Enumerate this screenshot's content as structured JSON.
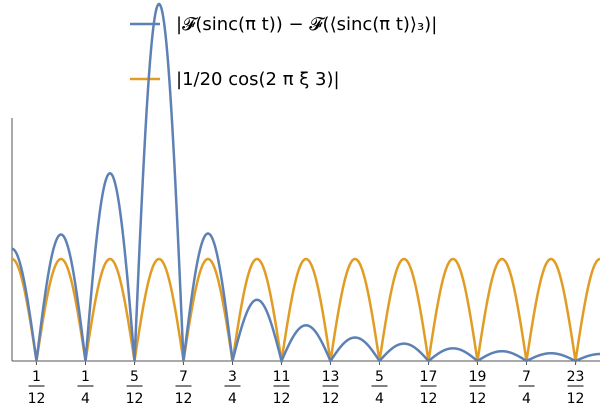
{
  "chart_data": {
    "type": "line",
    "title": "",
    "xlabel": "",
    "ylabel": "",
    "xlim": [
      0.0,
      2.0
    ],
    "ylim": [
      0,
      0.125
    ],
    "grid": false,
    "legend_placement": "top-center",
    "legend": [
      {
        "name": "|𝓕(sinc(π t)) − 𝓕(⟨sinc(π t)⟩₃)|",
        "color": "#5E81B5"
      },
      {
        "name": "|1/20 cos(2 π ξ 3)|",
        "color": "#E19C24"
      }
    ],
    "x_ticks": [
      {
        "value": 0.0833,
        "num": "1",
        "den": "12"
      },
      {
        "value": 0.25,
        "num": "1",
        "den": "4"
      },
      {
        "value": 0.4167,
        "num": "5",
        "den": "12"
      },
      {
        "value": 0.5833,
        "num": "7",
        "den": "12"
      },
      {
        "value": 0.75,
        "num": "3",
        "den": "4"
      },
      {
        "value": 0.9167,
        "num": "11",
        "den": "12"
      },
      {
        "value": 1.0833,
        "num": "13",
        "den": "12"
      },
      {
        "value": 1.25,
        "num": "5",
        "den": "4"
      },
      {
        "value": 1.4167,
        "num": "17",
        "den": "12"
      },
      {
        "value": 1.5833,
        "num": "19",
        "den": "12"
      },
      {
        "value": 1.75,
        "num": "7",
        "den": "4"
      },
      {
        "value": 1.9167,
        "num": "23",
        "den": "12"
      }
    ],
    "series": [
      {
        "name": "|𝓕(sinc(π t)) − 𝓕(⟨sinc(π t)⟩₃)|",
        "color": "#5E81B5",
        "zeros": [
          0.0833,
          0.25,
          0.4167,
          0.5833,
          0.75,
          0.9167,
          1.0833,
          1.25,
          1.4167,
          1.5833,
          1.75,
          1.9167
        ],
        "y_at_start": 0.055,
        "arch_peaks": [
          {
            "x": 0.167,
            "y": 0.062
          },
          {
            "x": 0.333,
            "y": 0.092
          },
          {
            "x": 0.5,
            "y": 0.175
          },
          {
            "x": 0.667,
            "y": 0.0625
          },
          {
            "x": 0.833,
            "y": 0.03
          },
          {
            "x": 1.0,
            "y": 0.0175
          },
          {
            "x": 1.167,
            "y": 0.0115
          },
          {
            "x": 1.333,
            "y": 0.0085
          },
          {
            "x": 1.5,
            "y": 0.0062
          },
          {
            "x": 1.667,
            "y": 0.0048
          },
          {
            "x": 1.833,
            "y": 0.0038
          }
        ],
        "y_at_end": 0.003
      },
      {
        "name": "|1/20 cos(2 π ξ 3)|",
        "color": "#E19C24",
        "formula": "abs(0.05 * cos(6 * pi * x))",
        "amplitude": 0.05,
        "frequency": 3
      }
    ]
  }
}
